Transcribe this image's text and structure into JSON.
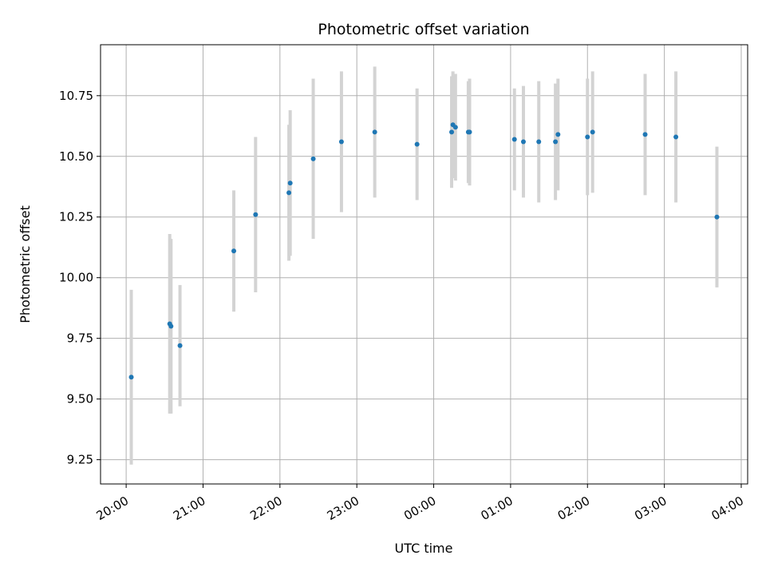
{
  "chart_data": {
    "type": "scatter",
    "title": "Photometric offset variation",
    "xlabel": "UTC time",
    "ylabel": "Photometric offset",
    "x_unit": "UTC time (HH:MM), 20:00 to 04:00 spanning midnight",
    "xlim": [
      "19:40",
      "04:05"
    ],
    "ylim": [
      9.15,
      10.96
    ],
    "x_ticks": [
      "20:00",
      "21:00",
      "22:00",
      "23:00",
      "00:00",
      "01:00",
      "02:00",
      "03:00",
      "04:00"
    ],
    "y_ticks": [
      9.25,
      9.5,
      9.75,
      10.0,
      10.25,
      10.5,
      10.75
    ],
    "y_tick_labels": [
      "9.25",
      "9.50",
      "9.75",
      "10.00",
      "10.25",
      "10.50",
      "10.75"
    ],
    "grid": true,
    "point_color": "#1f77b4",
    "errorbar_color": "#d3d3d3",
    "points": [
      {
        "x": "20:04",
        "y": 9.59,
        "err": 0.36
      },
      {
        "x": "20:34",
        "y": 9.81,
        "err": 0.37
      },
      {
        "x": "20:35",
        "y": 9.8,
        "err": 0.36
      },
      {
        "x": "20:42",
        "y": 9.72,
        "err": 0.25
      },
      {
        "x": "21:24",
        "y": 10.11,
        "err": 0.25
      },
      {
        "x": "21:41",
        "y": 10.26,
        "err": 0.32
      },
      {
        "x": "22:07",
        "y": 10.35,
        "err": 0.28
      },
      {
        "x": "22:08",
        "y": 10.39,
        "err": 0.3
      },
      {
        "x": "22:26",
        "y": 10.49,
        "err": 0.33
      },
      {
        "x": "22:48",
        "y": 10.56,
        "err": 0.29
      },
      {
        "x": "23:14",
        "y": 10.6,
        "err": 0.27
      },
      {
        "x": "23:47",
        "y": 10.55,
        "err": 0.23
      },
      {
        "x": "00:14",
        "y": 10.6,
        "err": 0.23
      },
      {
        "x": "00:15",
        "y": 10.63,
        "err": 0.22
      },
      {
        "x": "00:17",
        "y": 10.62,
        "err": 0.22
      },
      {
        "x": "00:27",
        "y": 10.6,
        "err": 0.21
      },
      {
        "x": "00:28",
        "y": 10.6,
        "err": 0.22
      },
      {
        "x": "01:03",
        "y": 10.57,
        "err": 0.21
      },
      {
        "x": "01:10",
        "y": 10.56,
        "err": 0.23
      },
      {
        "x": "01:22",
        "y": 10.56,
        "err": 0.25
      },
      {
        "x": "01:35",
        "y": 10.56,
        "err": 0.24
      },
      {
        "x": "01:37",
        "y": 10.59,
        "err": 0.23
      },
      {
        "x": "02:00",
        "y": 10.58,
        "err": 0.24
      },
      {
        "x": "02:04",
        "y": 10.6,
        "err": 0.25
      },
      {
        "x": "02:45",
        "y": 10.59,
        "err": 0.25
      },
      {
        "x": "03:09",
        "y": 10.58,
        "err": 0.27
      },
      {
        "x": "03:41",
        "y": 10.25,
        "err": 0.29
      }
    ]
  }
}
